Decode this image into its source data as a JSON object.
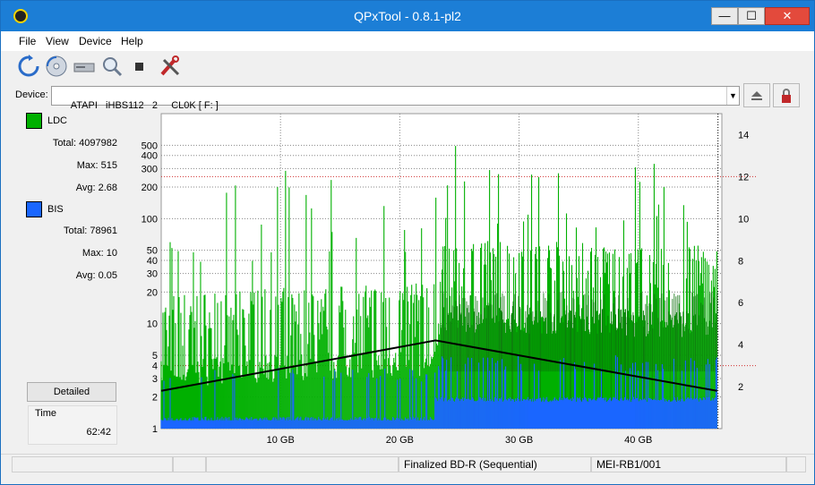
{
  "window": {
    "title": "QPxTool - 0.8.1-pl2",
    "controls": {
      "minimize": "—",
      "maximize": "☐",
      "close": "✕"
    }
  },
  "menu": [
    "File",
    "View",
    "Device",
    "Help"
  ],
  "toolbar": {
    "icons": [
      "refresh-icon",
      "disc-scan-icon",
      "drive-icon",
      "zoom-icon",
      "stop-icon",
      "tools-icon"
    ]
  },
  "device": {
    "label": "Device:",
    "value": "ATAPI   iHBS112   2     CL0K [ F: ]"
  },
  "stats": {
    "ldc": {
      "name": "LDC",
      "color": "#00b000",
      "total_label": "Total:",
      "total": "4097982",
      "max_label": "Max:",
      "max": "515",
      "avg_label": "Avg:",
      "avg": "2.68"
    },
    "bis": {
      "name": "BIS",
      "color": "#1a66ff",
      "total_label": "Total:",
      "total": "78961",
      "max_label": "Max:",
      "max": "10",
      "avg_label": "Avg:",
      "avg": "0.05"
    },
    "detailed_button": "Detailed",
    "time_label": "Time",
    "time_value": "62:42"
  },
  "chart_data": {
    "type": "bar",
    "x_unit": "GB",
    "xlim": [
      0,
      47
    ],
    "x_ticks": [
      "10 GB",
      "20 GB",
      "30 GB",
      "40 GB"
    ],
    "x_tick_values": [
      10,
      20,
      30,
      40
    ],
    "left_axis": {
      "scale": "log",
      "ylim": [
        1,
        1000
      ],
      "tick_values": [
        1,
        2,
        3,
        4,
        5,
        10,
        20,
        30,
        40,
        50,
        100,
        200,
        300,
        400,
        500
      ],
      "tick_labels": [
        "1",
        "2",
        "3",
        "4",
        "5",
        "10",
        "20",
        "30",
        "40",
        "50",
        "100",
        "200",
        "300",
        "400",
        "500"
      ]
    },
    "right_axis": {
      "scale": "linear",
      "ylim": [
        0,
        15
      ],
      "tick_values": [
        2,
        4,
        6,
        8,
        10,
        12,
        14
      ],
      "tick_labels": [
        "2",
        "4",
        "6",
        "8",
        "10",
        "12",
        "14"
      ]
    },
    "series": [
      {
        "name": "LDC",
        "color": "#00b000",
        "typical": [
          [
            0,
            3.5
          ],
          [
            10,
            4
          ],
          [
            23,
            4.5
          ],
          [
            23.5,
            12
          ],
          [
            35,
            11
          ],
          [
            46.6,
            10
          ]
        ],
        "peaks": [
          [
            0,
            60
          ],
          [
            10,
            300
          ],
          [
            23,
            300
          ],
          [
            24,
            500
          ],
          [
            35,
            400
          ],
          [
            46.6,
            300
          ]
        ]
      },
      {
        "name": "BIS",
        "color": "#1a66ff",
        "level": [
          [
            0,
            1.2
          ],
          [
            23,
            1.2
          ],
          [
            23.5,
            1.5
          ],
          [
            46.6,
            1.5
          ]
        ]
      },
      {
        "name": "Speed",
        "color": "#000000",
        "points": [
          [
            0,
            1.8
          ],
          [
            23,
            4.2
          ],
          [
            46.6,
            1.8
          ]
        ]
      }
    ],
    "grid": true
  },
  "statusbar": {
    "cells": [
      "",
      "",
      "",
      "Finalized BD-R (Sequential)",
      "MEI-RB1/001",
      ""
    ]
  }
}
